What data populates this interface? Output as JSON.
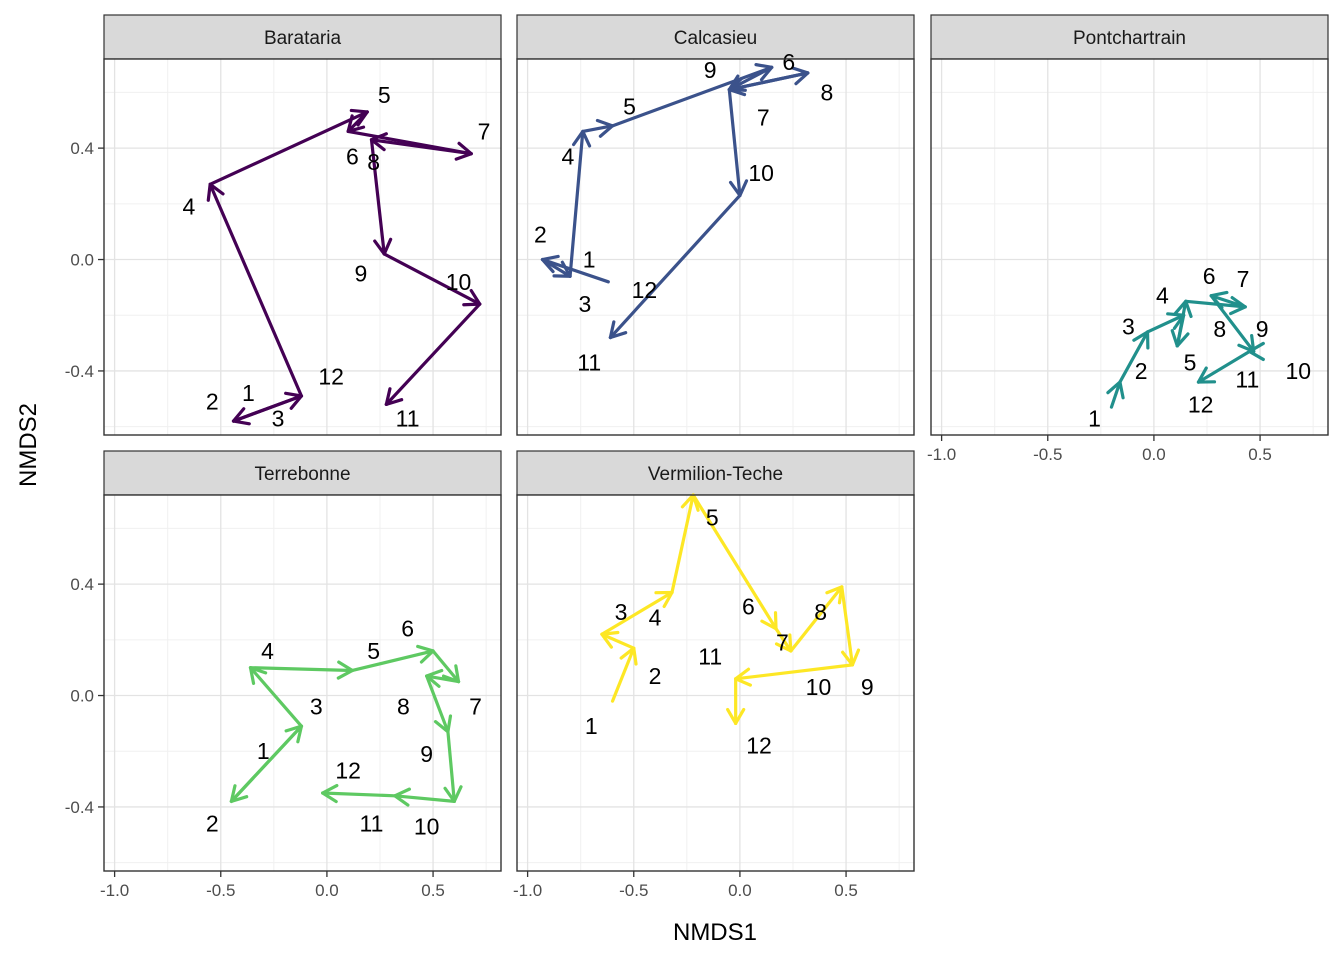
{
  "chart_data": {
    "type": "faceted-trajectory",
    "xlabel": "NMDS1",
    "ylabel": "NMDS2",
    "xlim": [
      -1.05,
      0.82
    ],
    "ylim": [
      -0.63,
      0.72
    ],
    "x_ticks": [
      -1.0,
      -0.5,
      0.0,
      0.5
    ],
    "x_tick_labels": [
      "-1.0",
      "-0.5",
      "0.0",
      "0.5"
    ],
    "y_ticks": [
      -0.4,
      0.0,
      0.4
    ],
    "y_tick_labels": [
      "-0.4",
      "0.0",
      "0.4"
    ],
    "grid": true,
    "facets": [
      {
        "name": "Barataria",
        "color": "#440154",
        "points": [
          {
            "label": "1",
            "x": -0.12,
            "y": -0.49
          },
          {
            "label": "2",
            "x": -0.44,
            "y": -0.58
          },
          {
            "label": "3",
            "x": -0.12,
            "y": -0.49
          },
          {
            "label": "4",
            "x": -0.55,
            "y": 0.27
          },
          {
            "label": "5",
            "x": 0.19,
            "y": 0.53
          },
          {
            "label": "6",
            "x": 0.1,
            "y": 0.46
          },
          {
            "label": "7",
            "x": 0.68,
            "y": 0.38
          },
          {
            "label": "8",
            "x": 0.21,
            "y": 0.43
          },
          {
            "label": "9",
            "x": 0.27,
            "y": 0.02
          },
          {
            "label": "10",
            "x": 0.72,
            "y": -0.16
          },
          {
            "label": "11",
            "x": 0.28,
            "y": -0.52
          },
          {
            "label": "12",
            "x": 0.28,
            "y": -0.52
          }
        ],
        "labels": [
          {
            "text": "1",
            "x": -0.37,
            "y": -0.48
          },
          {
            "text": "2",
            "x": -0.54,
            "y": -0.51
          },
          {
            "text": "3",
            "x": -0.23,
            "y": -0.57
          },
          {
            "text": "4",
            "x": -0.65,
            "y": 0.19
          },
          {
            "text": "5",
            "x": 0.27,
            "y": 0.59
          },
          {
            "text": "6",
            "x": 0.12,
            "y": 0.37
          },
          {
            "text": "7",
            "x": 0.74,
            "y": 0.46
          },
          {
            "text": "8",
            "x": 0.22,
            "y": 0.35
          },
          {
            "text": "9",
            "x": 0.16,
            "y": -0.05
          },
          {
            "text": "10",
            "x": 0.62,
            "y": -0.08
          },
          {
            "text": "11",
            "x": 0.38,
            "y": -0.57
          },
          {
            "text": "12",
            "x": 0.02,
            "y": -0.42
          }
        ]
      },
      {
        "name": "Calcasieu",
        "color": "#3b528b",
        "points": [
          {
            "label": "1",
            "x": -0.62,
            "y": -0.08
          },
          {
            "label": "2",
            "x": -0.93,
            "y": 0.0
          },
          {
            "label": "3",
            "x": -0.8,
            "y": -0.06
          },
          {
            "label": "4",
            "x": -0.74,
            "y": 0.46
          },
          {
            "label": "5",
            "x": -0.6,
            "y": 0.48
          },
          {
            "label": "6",
            "x": 0.15,
            "y": 0.69
          },
          {
            "label": "7",
            "x": -0.05,
            "y": 0.61
          },
          {
            "label": "8",
            "x": 0.32,
            "y": 0.67
          },
          {
            "label": "9",
            "x": -0.05,
            "y": 0.61
          },
          {
            "label": "10",
            "x": 0.0,
            "y": 0.23
          },
          {
            "label": "11",
            "x": -0.61,
            "y": -0.28
          },
          {
            "label": "12",
            "x": -0.61,
            "y": -0.28
          }
        ],
        "labels": [
          {
            "text": "1",
            "x": -0.71,
            "y": 0.0
          },
          {
            "text": "2",
            "x": -0.94,
            "y": 0.09
          },
          {
            "text": "3",
            "x": -0.73,
            "y": -0.16
          },
          {
            "text": "4",
            "x": -0.81,
            "y": 0.37
          },
          {
            "text": "5",
            "x": -0.52,
            "y": 0.55
          },
          {
            "text": "6",
            "x": 0.23,
            "y": 0.71
          },
          {
            "text": "7",
            "x": 0.11,
            "y": 0.51
          },
          {
            "text": "8",
            "x": 0.41,
            "y": 0.6
          },
          {
            "text": "9",
            "x": -0.14,
            "y": 0.68
          },
          {
            "text": "10",
            "x": 0.1,
            "y": 0.31
          },
          {
            "text": "11",
            "x": -0.71,
            "y": -0.37
          },
          {
            "text": "12",
            "x": -0.45,
            "y": -0.11
          }
        ]
      },
      {
        "name": "Pontchartrain",
        "color": "#21908c",
        "points": [
          {
            "label": "1",
            "x": -0.2,
            "y": -0.53
          },
          {
            "label": "2",
            "x": -0.16,
            "y": -0.44
          },
          {
            "label": "3",
            "x": -0.03,
            "y": -0.26
          },
          {
            "label": "4",
            "x": 0.14,
            "y": -0.2
          },
          {
            "label": "5",
            "x": 0.11,
            "y": -0.31
          },
          {
            "label": "6",
            "x": 0.15,
            "y": -0.15
          },
          {
            "label": "7",
            "x": 0.43,
            "y": -0.17
          },
          {
            "label": "8",
            "x": 0.27,
            "y": -0.13
          },
          {
            "label": "9",
            "x": 0.47,
            "y": -0.33
          },
          {
            "label": "10",
            "x": 0.45,
            "y": -0.33
          },
          {
            "label": "11",
            "x": 0.21,
            "y": -0.44
          },
          {
            "label": "12",
            "x": 0.21,
            "y": -0.44
          }
        ],
        "labels": [
          {
            "text": "1",
            "x": -0.28,
            "y": -0.57
          },
          {
            "text": "2",
            "x": -0.06,
            "y": -0.4
          },
          {
            "text": "3",
            "x": -0.12,
            "y": -0.24
          },
          {
            "text": "4",
            "x": 0.04,
            "y": -0.13
          },
          {
            "text": "5",
            "x": 0.17,
            "y": -0.37
          },
          {
            "text": "6",
            "x": 0.26,
            "y": -0.06
          },
          {
            "text": "7",
            "x": 0.42,
            "y": -0.07
          },
          {
            "text": "8",
            "x": 0.31,
            "y": -0.25
          },
          {
            "text": "9",
            "x": 0.51,
            "y": -0.25
          },
          {
            "text": "10",
            "x": 0.68,
            "y": -0.4
          },
          {
            "text": "11",
            "x": 0.44,
            "y": -0.43
          },
          {
            "text": "12",
            "x": 0.22,
            "y": -0.52
          }
        ]
      },
      {
        "name": "Terrebonne",
        "color": "#5ec962",
        "points": [
          {
            "label": "1",
            "x": -0.12,
            "y": -0.11
          },
          {
            "label": "2",
            "x": -0.45,
            "y": -0.38
          },
          {
            "label": "3",
            "x": -0.12,
            "y": -0.11
          },
          {
            "label": "4",
            "x": -0.36,
            "y": 0.1
          },
          {
            "label": "5",
            "x": 0.12,
            "y": 0.09
          },
          {
            "label": "6",
            "x": 0.5,
            "y": 0.16
          },
          {
            "label": "7",
            "x": 0.62,
            "y": 0.05
          },
          {
            "label": "8",
            "x": 0.47,
            "y": 0.07
          },
          {
            "label": "9",
            "x": 0.57,
            "y": -0.13
          },
          {
            "label": "10",
            "x": 0.6,
            "y": -0.38
          },
          {
            "label": "11",
            "x": 0.32,
            "y": -0.36
          },
          {
            "label": "12",
            "x": -0.02,
            "y": -0.35
          }
        ],
        "labels": [
          {
            "text": "1",
            "x": -0.3,
            "y": -0.2
          },
          {
            "text": "2",
            "x": -0.54,
            "y": -0.46
          },
          {
            "text": "3",
            "x": -0.05,
            "y": -0.04
          },
          {
            "text": "4",
            "x": -0.28,
            "y": 0.16
          },
          {
            "text": "5",
            "x": 0.22,
            "y": 0.16
          },
          {
            "text": "6",
            "x": 0.38,
            "y": 0.24
          },
          {
            "text": "7",
            "x": 0.7,
            "y": -0.04
          },
          {
            "text": "8",
            "x": 0.36,
            "y": -0.04
          },
          {
            "text": "9",
            "x": 0.47,
            "y": -0.21
          },
          {
            "text": "10",
            "x": 0.47,
            "y": -0.47
          },
          {
            "text": "11",
            "x": 0.21,
            "y": -0.46
          },
          {
            "text": "12",
            "x": 0.1,
            "y": -0.27
          }
        ]
      },
      {
        "name": "Vermilion-Teche",
        "color": "#fde725",
        "points": [
          {
            "label": "1",
            "x": -0.6,
            "y": -0.02
          },
          {
            "label": "2",
            "x": -0.5,
            "y": 0.17
          },
          {
            "label": "3",
            "x": -0.65,
            "y": 0.22
          },
          {
            "label": "4",
            "x": -0.32,
            "y": 0.37
          },
          {
            "label": "5",
            "x": -0.22,
            "y": 0.72
          },
          {
            "label": "6",
            "x": 0.17,
            "y": 0.24
          },
          {
            "label": "7",
            "x": 0.24,
            "y": 0.16
          },
          {
            "label": "8",
            "x": 0.48,
            "y": 0.39
          },
          {
            "label": "9",
            "x": 0.53,
            "y": 0.11
          },
          {
            "label": "10",
            "x": -0.02,
            "y": 0.06
          },
          {
            "label": "11",
            "x": -0.02,
            "y": -0.1
          },
          {
            "label": "12",
            "x": -0.02,
            "y": -0.1
          }
        ],
        "labels": [
          {
            "text": "1",
            "x": -0.7,
            "y": -0.11
          },
          {
            "text": "2",
            "x": -0.4,
            "y": 0.07
          },
          {
            "text": "3",
            "x": -0.56,
            "y": 0.3
          },
          {
            "text": "4",
            "x": -0.4,
            "y": 0.28
          },
          {
            "text": "5",
            "x": -0.13,
            "y": 0.64
          },
          {
            "text": "6",
            "x": 0.04,
            "y": 0.32
          },
          {
            "text": "7",
            "x": 0.2,
            "y": 0.19
          },
          {
            "text": "8",
            "x": 0.38,
            "y": 0.3
          },
          {
            "text": "9",
            "x": 0.6,
            "y": 0.03
          },
          {
            "text": "10",
            "x": 0.37,
            "y": 0.03
          },
          {
            "text": "11",
            "x": -0.14,
            "y": 0.14
          },
          {
            "text": "12",
            "x": 0.09,
            "y": -0.18
          }
        ]
      }
    ]
  }
}
